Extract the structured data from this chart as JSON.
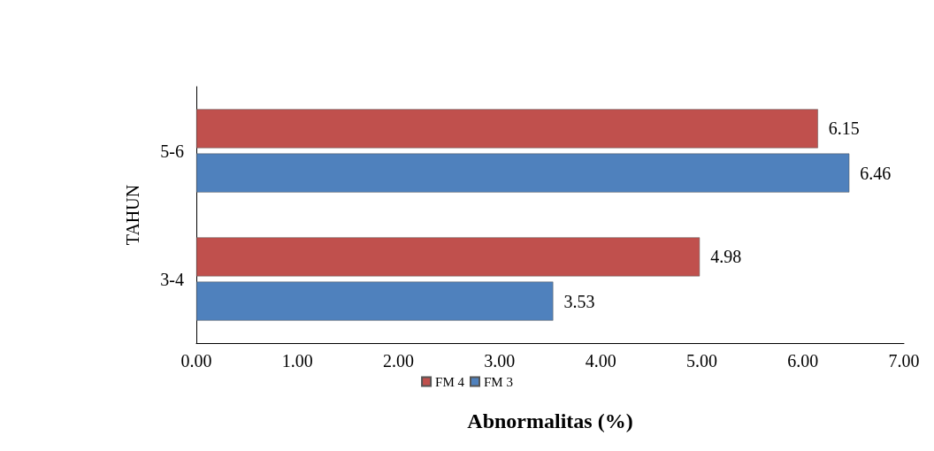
{
  "chart_data": {
    "type": "bar",
    "orientation": "horizontal",
    "xlabel": "Abnormalitas (%)",
    "ylabel": "TAHUN",
    "categories": [
      "5-6",
      "3-4"
    ],
    "series": [
      {
        "name": "FM 4",
        "color": "#c0504d",
        "values": [
          6.15,
          4.98
        ]
      },
      {
        "name": "FM 3",
        "color": "#4f81bd",
        "values": [
          6.46,
          3.53
        ]
      }
    ],
    "xlim": [
      0,
      7
    ],
    "xticks": [
      {
        "value": 0,
        "label": "0.00"
      },
      {
        "value": 1,
        "label": "1.00"
      },
      {
        "value": 2,
        "label": "2.00"
      },
      {
        "value": 3,
        "label": "3.00"
      },
      {
        "value": 4,
        "label": "4.00"
      },
      {
        "value": 5,
        "label": "5.00"
      },
      {
        "value": 6,
        "label": "6.00"
      },
      {
        "value": 7,
        "label": "7.00"
      }
    ],
    "data_labels": true,
    "legend": "bottom",
    "grid": false
  }
}
